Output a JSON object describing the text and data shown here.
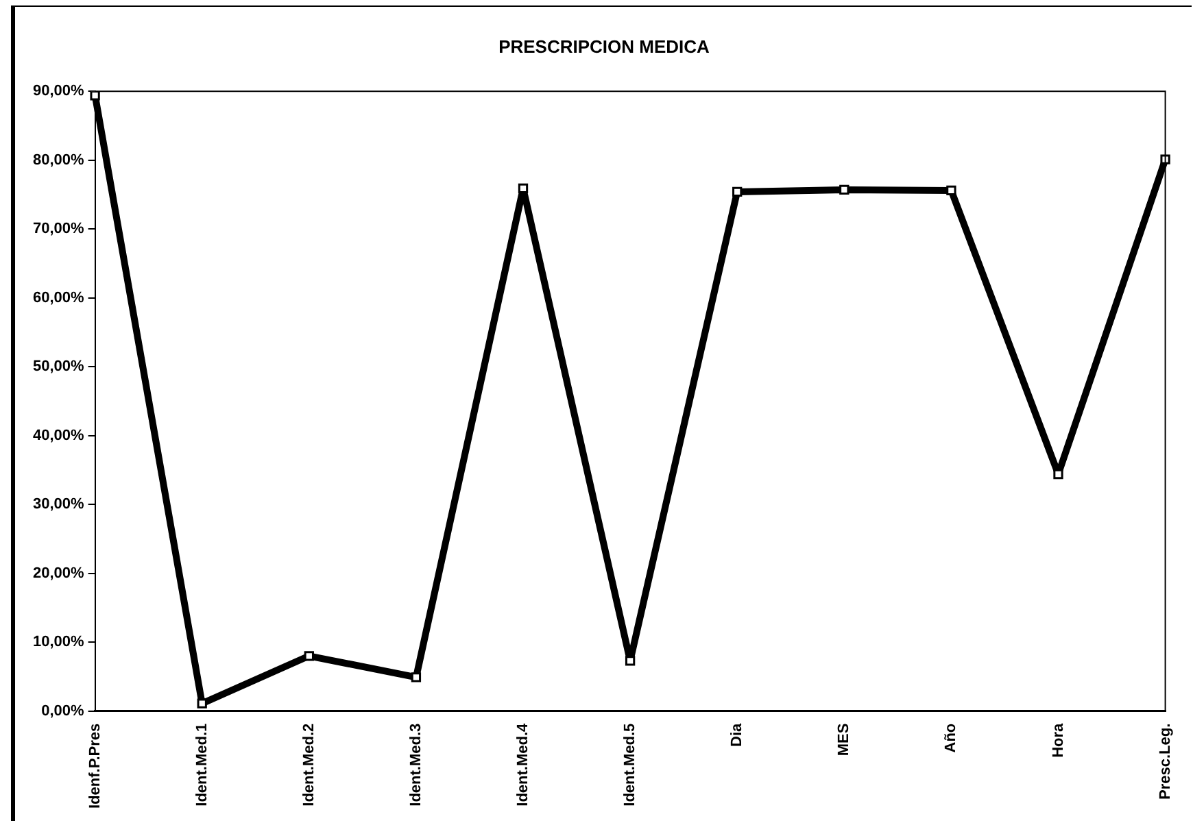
{
  "chart_data": {
    "type": "line",
    "title": "PRESCRIPCION MEDICA",
    "categories": [
      "Idenf.P.Pres",
      "Ident.Med.1",
      "Ident.Med.2",
      "Ident.Med.3",
      "Ident.Med.4",
      "Ident.Med.5",
      "Dia",
      "MES",
      "Año",
      "Hora",
      "Presc.Leg."
    ],
    "series": [
      {
        "color": "#000000",
        "values": [
          89.4,
          1.1,
          8.0,
          4.9,
          75.9,
          7.3,
          75.4,
          75.7,
          75.6,
          34.4,
          80.1
        ]
      }
    ],
    "ylim": [
      0,
      90
    ],
    "yticks": [
      {
        "value": 0,
        "label": "0,00%"
      },
      {
        "value": 10,
        "label": "10,00%"
      },
      {
        "value": 20,
        "label": "20,00%"
      },
      {
        "value": 30,
        "label": "30,00%"
      },
      {
        "value": 40,
        "label": "40,00%"
      },
      {
        "value": 50,
        "label": "50,00%"
      },
      {
        "value": 60,
        "label": "60,00%"
      },
      {
        "value": 70,
        "label": "70,00%"
      },
      {
        "value": 80,
        "label": "80,00%"
      },
      {
        "value": 90,
        "label": "90,00%"
      }
    ],
    "grid": false,
    "legend": false,
    "marker": "square",
    "line_style": "solid"
  }
}
